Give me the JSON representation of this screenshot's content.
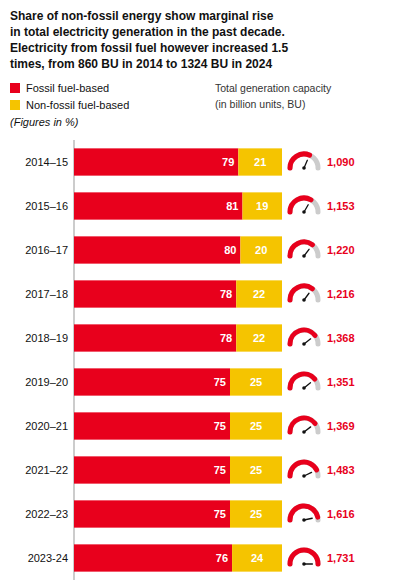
{
  "chart_data": {
    "type": "bar",
    "orientation": "horizontal",
    "stacked": true,
    "data_labels": true,
    "tick_labels": "y",
    "grid": false,
    "legend": "upper left",
    "title": "Share of non-fossil energy show marginal rise\nin total electricity generation in the past decade.\nElectricity from fossil fuel however increased 1.5\ntimes, from 860 BU in 2014 to 1324 BU in 2024",
    "annotations": [
      "(Figures in %)"
    ],
    "categories": [
      "2014–15",
      "2015–16",
      "2016–17",
      "2017–18",
      "2018–19",
      "2019–20",
      "2020–21",
      "2021–22",
      "2022–23",
      "2023-24"
    ],
    "xlim": [
      0,
      100
    ],
    "series": [
      {
        "name": "Fossil fuel-based",
        "color": "#e8001c",
        "values": [
          79,
          81,
          80,
          78,
          78,
          75,
          75,
          75,
          75,
          76
        ]
      },
      {
        "name": "Non-fossil fuel-based",
        "color": "#f5c400",
        "values": [
          21,
          19,
          20,
          22,
          22,
          25,
          25,
          25,
          25,
          24
        ]
      }
    ],
    "gauge": {
      "title": "Total generation capacity\n(in billion units, BU)",
      "values": [
        1090,
        1153,
        1220,
        1216,
        1368,
        1351,
        1369,
        1483,
        1616,
        1731
      ],
      "value_labels": [
        "1,090",
        "1,153",
        "1,220",
        "1,216",
        "1,368",
        "1,351",
        "1,369",
        "1,483",
        "1,616",
        "1,731"
      ],
      "max": 1731,
      "color": "#e8001c"
    }
  }
}
